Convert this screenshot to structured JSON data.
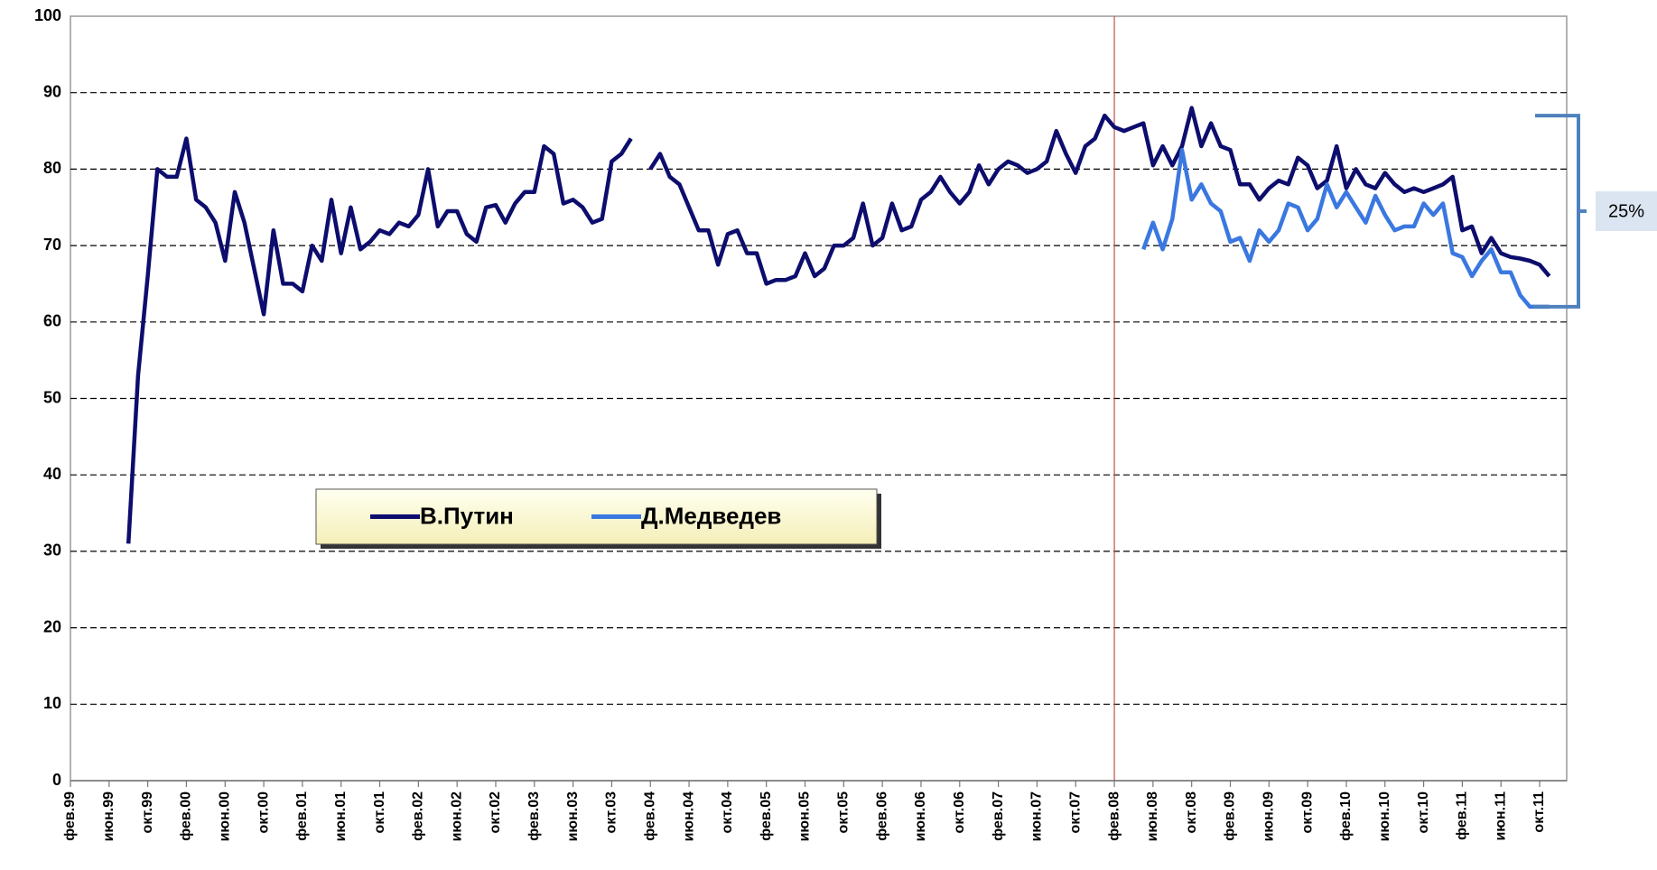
{
  "chart_data": {
    "type": "line",
    "categories": [
      "фев.99",
      null,
      null,
      null,
      "июн.99",
      null,
      null,
      null,
      "окт.99",
      null,
      null,
      null,
      "фев.00",
      null,
      null,
      null,
      "июн.00",
      null,
      null,
      null,
      "окт.00",
      null,
      null,
      null,
      "фев.01",
      null,
      null,
      null,
      "июн.01",
      null,
      null,
      null,
      "окт.01",
      null,
      null,
      null,
      "фев.02",
      null,
      null,
      null,
      "июн.02",
      null,
      null,
      null,
      "окт.02",
      null,
      null,
      null,
      "фев.03",
      null,
      null,
      null,
      "июн.03",
      null,
      null,
      null,
      "окт.03",
      null,
      null,
      null,
      "фев.04",
      null,
      null,
      null,
      "июн.04",
      null,
      null,
      null,
      "окт.04",
      null,
      null,
      null,
      "фев.05",
      null,
      null,
      null,
      "июн.05",
      null,
      null,
      null,
      "окт.05",
      null,
      null,
      null,
      "фев.06",
      null,
      null,
      null,
      "июн.06",
      null,
      null,
      null,
      "окт.06",
      null,
      null,
      null,
      "фев.07",
      null,
      null,
      null,
      "июн.07",
      null,
      null,
      null,
      "окт.07",
      null,
      null,
      null,
      "фев.08",
      null,
      null,
      null,
      "июн.08",
      null,
      null,
      null,
      "окт.08",
      null,
      null,
      null,
      "фев.09",
      null,
      null,
      null,
      "июн.09",
      null,
      null,
      null,
      "окт.09",
      null,
      null,
      null,
      "фев.10",
      null,
      null,
      null,
      "июн.10",
      null,
      null,
      null,
      "окт.10",
      null,
      null,
      null,
      "фев.11",
      null,
      null,
      null,
      "июн.11",
      null,
      null,
      null,
      "окт.11",
      null
    ],
    "series": [
      {
        "name": "В.Путин",
        "color": "#0d0d6e",
        "values": [
          null,
          null,
          null,
          null,
          null,
          null,
          31,
          53,
          66,
          80,
          79,
          79,
          84,
          76,
          75,
          73,
          68,
          77,
          73,
          67,
          61,
          72,
          65,
          65,
          64,
          70,
          68,
          76,
          69,
          75,
          69.5,
          70.5,
          72,
          71.5,
          73,
          72.5,
          74,
          80,
          72.5,
          74.5,
          74.5,
          71.5,
          70.5,
          75,
          75.3,
          73,
          75.5,
          77,
          77,
          83,
          82,
          75.5,
          76,
          75,
          73,
          73.5,
          81,
          82,
          84,
          null,
          80,
          82,
          79,
          78,
          75,
          72,
          72,
          67.5,
          71.5,
          72,
          69,
          69,
          65,
          65.5,
          65.5,
          66,
          69,
          66,
          67,
          70,
          70,
          71,
          75.5,
          70,
          71,
          75.5,
          72,
          72.5,
          76,
          77,
          79,
          77,
          75.5,
          77,
          80.5,
          78,
          80,
          81,
          80.5,
          79.5,
          80,
          81,
          85,
          82,
          79.5,
          83,
          84,
          87,
          85.5,
          85,
          85.5,
          86,
          80.5,
          83,
          80.5,
          83,
          88,
          83,
          86,
          83,
          82.5,
          78,
          78,
          76,
          77.5,
          78.5,
          78,
          81.5,
          80.5,
          77.5,
          78.5,
          83,
          77.5,
          80,
          78,
          77.5,
          79.5,
          78,
          77,
          77.5,
          77,
          77.5,
          78,
          79,
          72,
          72.5,
          69,
          71,
          69,
          68.5,
          68.3,
          68,
          67.5,
          66
        ]
      },
      {
        "name": "Д.Медведев",
        "color": "#3a78e0",
        "values": [
          null,
          null,
          null,
          null,
          null,
          null,
          null,
          null,
          null,
          null,
          null,
          null,
          null,
          null,
          null,
          null,
          null,
          null,
          null,
          null,
          null,
          null,
          null,
          null,
          null,
          null,
          null,
          null,
          null,
          null,
          null,
          null,
          null,
          null,
          null,
          null,
          null,
          null,
          null,
          null,
          null,
          null,
          null,
          null,
          null,
          null,
          null,
          null,
          null,
          null,
          null,
          null,
          null,
          null,
          null,
          null,
          null,
          null,
          null,
          null,
          null,
          null,
          null,
          null,
          null,
          null,
          null,
          null,
          null,
          null,
          null,
          null,
          null,
          null,
          null,
          null,
          null,
          null,
          null,
          null,
          null,
          null,
          null,
          null,
          null,
          null,
          null,
          null,
          null,
          null,
          null,
          null,
          null,
          null,
          null,
          null,
          null,
          null,
          null,
          null,
          null,
          null,
          null,
          null,
          null,
          null,
          null,
          null,
          null,
          null,
          null,
          69.5,
          73,
          69.5,
          73.5,
          82.5,
          76,
          78,
          75.5,
          74.5,
          70.5,
          71,
          68,
          72,
          70.5,
          72,
          75.5,
          75,
          72,
          73.5,
          78,
          75,
          77,
          75,
          73,
          76.5,
          74,
          72,
          72.5,
          72.5,
          75.5,
          74,
          75.5,
          69,
          68.5,
          66,
          68,
          69.5,
          66.5,
          66.5,
          63.5,
          62,
          62,
          62
        ]
      }
    ],
    "ylim": [
      0,
      100
    ],
    "yticks": [
      0,
      10,
      20,
      30,
      40,
      50,
      60,
      70,
      80,
      90,
      100
    ],
    "grid": true,
    "legend": "center",
    "vlines": [
      {
        "x": "фев.08",
        "color": "#c0504d"
      }
    ],
    "annotations": [
      {
        "text": "25%",
        "y_from": 62,
        "y_to": 87,
        "color": "#4f81bd"
      }
    ]
  }
}
